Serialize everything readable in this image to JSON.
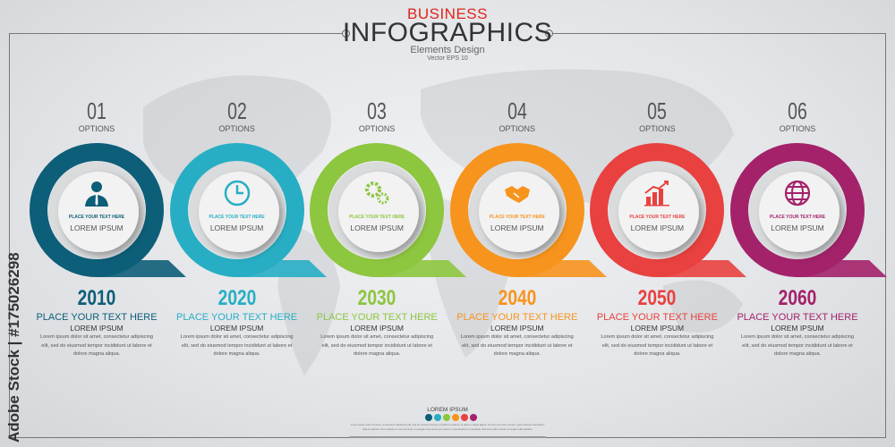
{
  "header": {
    "kicker": "BUSINESS",
    "title": "INFOGRAPHICS",
    "subtitle": "Elements Design",
    "note": "Vector EPS 10"
  },
  "watermark": "Adobe Stock | #175026298",
  "items": [
    {
      "number": "01",
      "options": "OPTIONS",
      "icon": "businessman-icon",
      "color": "#0d5e78",
      "disc_small": "PLACE YOUR TEXT HERE",
      "disc_label": "LOREM IPSUM",
      "year": "2010",
      "place": "PLACE YOUR TEXT HERE",
      "lorem": "LOREM IPSUM",
      "body": "Lorem ipsum dolor sit amet, consectetur adipiscing elit, sed do eiusmod tempor incididunt ut labore et dolore magna aliqua."
    },
    {
      "number": "02",
      "options": "OPTIONS",
      "icon": "clock-icon",
      "color": "#27aec4",
      "disc_small": "PLACE YOUR TEXT HERE",
      "disc_label": "LOREM IPSUM",
      "year": "2020",
      "place": "PLACE YOUR TEXT HERE",
      "lorem": "LOREM IPSUM",
      "body": "Lorem ipsum dolor sit amet, consectetur adipiscing elit, sed do eiusmod tempor incididunt ut labore et dolore magna aliqua."
    },
    {
      "number": "03",
      "options": "OPTIONS",
      "icon": "gears-icon",
      "color": "#8dc63f",
      "disc_small": "PLACE YOUR TEXT HERE",
      "disc_label": "LOREM IPSUM",
      "year": "2030",
      "place": "PLACE YOUR TEXT HERE",
      "lorem": "LOREM IPSUM",
      "body": "Lorem ipsum dolor sit amet, consectetur adipiscing elit, sed do eiusmod tempor incididunt ut labore et dolore magna aliqua."
    },
    {
      "number": "04",
      "options": "OPTIONS",
      "icon": "handshake-icon",
      "color": "#f7941d",
      "disc_small": "PLACE YOUR TEXT HERE",
      "disc_label": "LOREM IPSUM",
      "year": "2040",
      "place": "PLACE YOUR TEXT HERE",
      "lorem": "LOREM IPSUM",
      "body": "Lorem ipsum dolor sit amet, consectetur adipiscing elit, sed do eiusmod tempor incididunt ut labore et dolore magna aliqua."
    },
    {
      "number": "05",
      "options": "OPTIONS",
      "icon": "bar-chart-icon",
      "color": "#e8413f",
      "disc_small": "PLACE YOUR TEXT HERE",
      "disc_label": "LOREM IPSUM",
      "year": "2050",
      "place": "PLACE YOUR TEXT HERE",
      "lorem": "LOREM IPSUM",
      "body": "Lorem ipsum dolor sit amet, consectetur adipiscing elit, sed do eiusmod tempor incididunt ut labore et dolore magna aliqua."
    },
    {
      "number": "06",
      "options": "OPTIONS",
      "icon": "globe-icon",
      "color": "#a3226a",
      "disc_small": "PLACE YOUR TEXT HERE",
      "disc_label": "LOREM IPSUM",
      "year": "2060",
      "place": "PLACE YOUR TEXT HERE",
      "lorem": "LOREM IPSUM",
      "body": "Lorem ipsum dolor sit amet, consectetur adipiscing elit, sed do eiusmod tempor incididunt ut labore et dolore magna aliqua."
    }
  ],
  "footer": {
    "label": "LOREM IPSUM",
    "text": "Lorem ipsum dolor sit amet, consectetur adipiscing elit, sed do eiusmod tempor incididunt ut labore et dolore magna aliqua. Ut enim ad minim veniam, quis nostrud exercitation ullamco laboris nisi ut aliquip ex ea commodo consequat. Duis aute irure dolor in reprehenderit in voluptate velit esse cillum dolore eu fugiat nulla pariatur."
  }
}
